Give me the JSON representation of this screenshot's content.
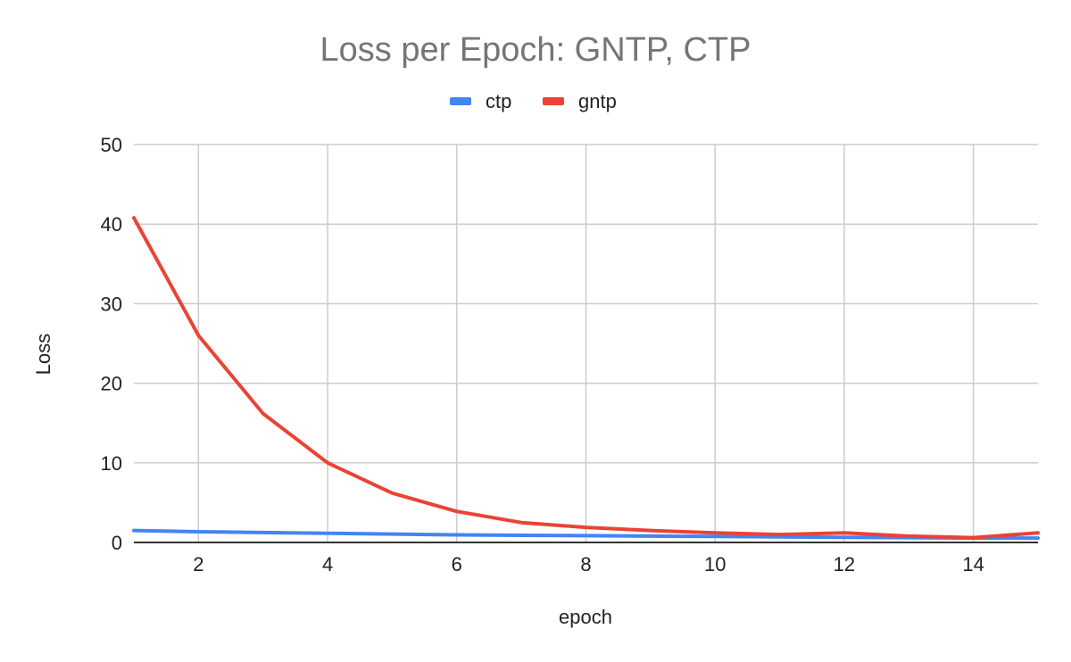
{
  "chart_data": {
    "type": "line",
    "title": "Loss per Epoch: GNTP, CTP",
    "xlabel": "epoch",
    "ylabel": "Loss",
    "xlim": [
      1,
      15
    ],
    "ylim": [
      0,
      50
    ],
    "x_ticks": [
      2,
      4,
      6,
      8,
      10,
      12,
      14
    ],
    "y_ticks": [
      0,
      10,
      20,
      30,
      40,
      50
    ],
    "grid": true,
    "legend_position": "top",
    "x": [
      1,
      2,
      3,
      4,
      5,
      6,
      7,
      8,
      9,
      10,
      11,
      12,
      13,
      14,
      15
    ],
    "series": [
      {
        "name": "ctp",
        "color": "#4285f4",
        "values": [
          1.5,
          1.35,
          1.25,
          1.15,
          1.05,
          0.95,
          0.9,
          0.85,
          0.8,
          0.75,
          0.7,
          0.65,
          0.6,
          0.55,
          0.55
        ]
      },
      {
        "name": "gntp",
        "color": "#ea4335",
        "values": [
          40.8,
          26.0,
          16.2,
          10.0,
          6.2,
          3.9,
          2.5,
          1.9,
          1.5,
          1.2,
          1.0,
          1.2,
          0.8,
          0.6,
          1.2
        ]
      }
    ]
  }
}
